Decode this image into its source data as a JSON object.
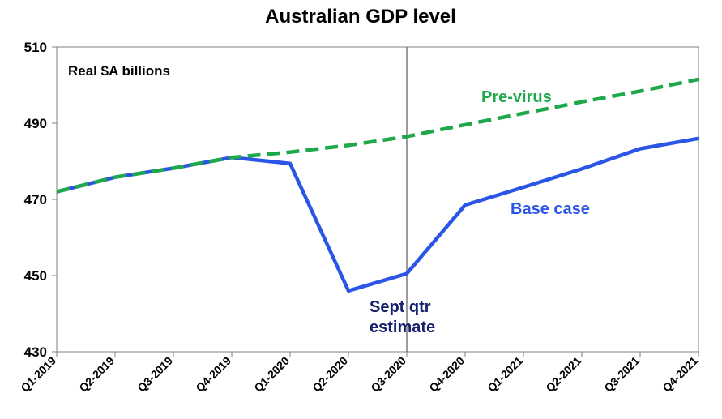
{
  "chart_data": {
    "type": "line",
    "title": "Australian GDP level",
    "ylabel": "Real $A billions",
    "xlabel": "",
    "ylim": [
      430,
      510
    ],
    "yticks": [
      430,
      450,
      470,
      490,
      510
    ],
    "categories": [
      "Q1-2019",
      "Q2-2019",
      "Q3-2019",
      "Q4-2019",
      "Q1-2020",
      "Q2-2020",
      "Q3-2020",
      "Q4-2020",
      "Q1-2021",
      "Q2-2021",
      "Q3-2021",
      "Q4-2021"
    ],
    "series": [
      {
        "name": "Pre-virus",
        "color": "#1fa84a",
        "style": "dashed",
        "values": [
          472,
          475.8,
          478.2,
          481,
          482.4,
          484.2,
          486.5,
          489.6,
          492.6,
          495.6,
          498.4,
          501.5
        ]
      },
      {
        "name": "Base case",
        "color": "#2b55e6",
        "style": "solid",
        "values": [
          472,
          475.8,
          478.2,
          481,
          479.4,
          446,
          450.5,
          468.5,
          473.2,
          478,
          483.3,
          486
        ]
      }
    ],
    "vline_category": "Q3-2020",
    "annotations": [
      {
        "text": "Pre-virus",
        "color": "#1fa84a"
      },
      {
        "text": "Base case",
        "color": "#2b55e6"
      },
      {
        "text": "Sept qtr",
        "color": "#14206b"
      },
      {
        "text": "estimate",
        "color": "#14206b"
      }
    ]
  }
}
